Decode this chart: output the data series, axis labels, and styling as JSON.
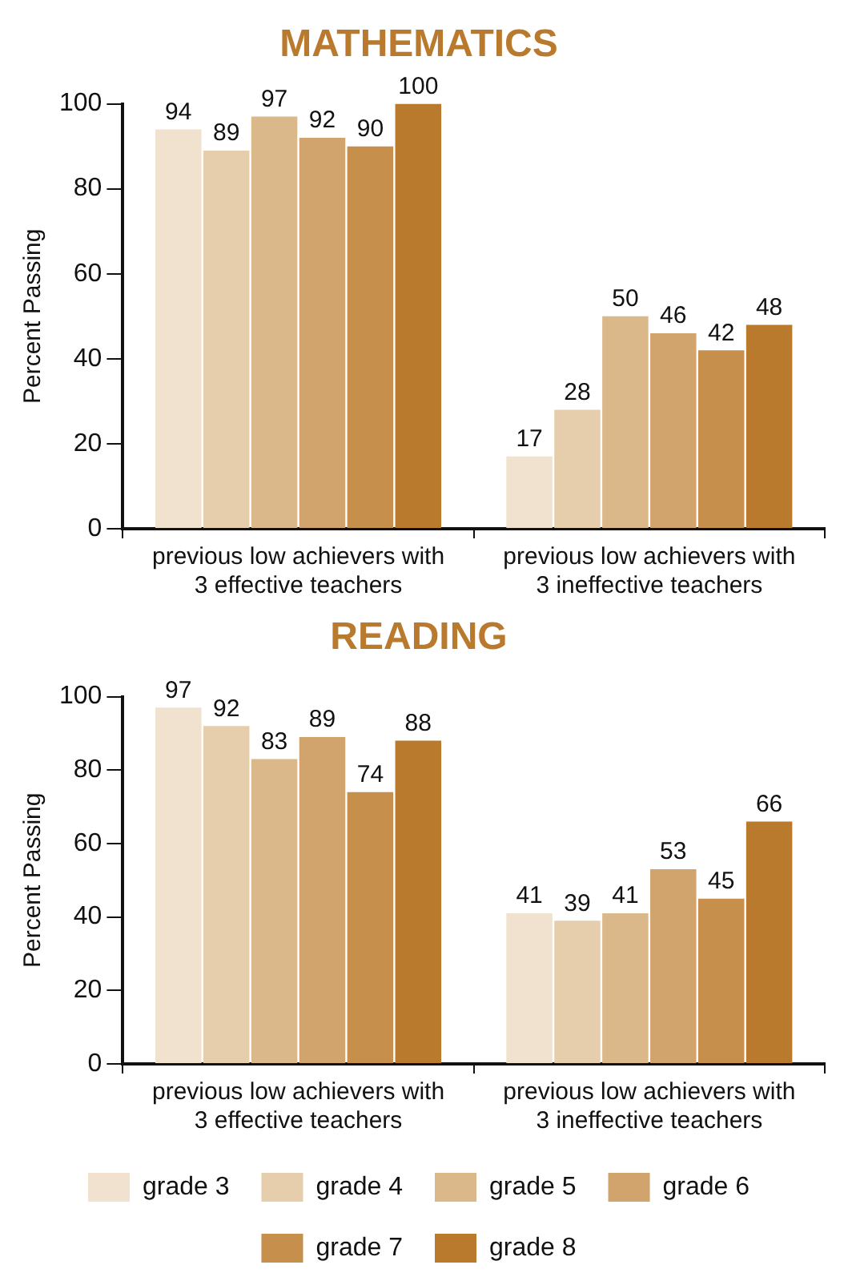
{
  "chart_data": [
    {
      "type": "bar",
      "title": "MATHEMATICS",
      "ylabel": "Percent Passing",
      "categories": [
        "previous low achievers with 3 effective teachers",
        "previous low achievers with 3 ineffective teachers"
      ],
      "series": [
        {
          "color": "#f0e2cf",
          "values": [
            94,
            17
          ]
        },
        {
          "color": "#e6cdab",
          "values": [
            89,
            28
          ]
        },
        {
          "color": "#dbb88a",
          "values": [
            97,
            50
          ]
        },
        {
          "color": "#d0a46c",
          "values": [
            92,
            46
          ]
        },
        {
          "color": "#c68f4c",
          "values": [
            90,
            42
          ]
        },
        {
          "color": "#b97a2d",
          "values": [
            100,
            48
          ]
        }
      ],
      "ylim": [
        0,
        100
      ],
      "yticks": [
        0,
        20,
        40,
        60,
        80,
        100
      ],
      "grid": false,
      "legend": false,
      "data_labels": true
    },
    {
      "type": "bar",
      "title": "READING",
      "ylabel": "Percent Passing",
      "categories": [
        "previous low achievers with 3 effective teachers",
        "previous low achievers with 3 ineffective teachers"
      ],
      "series": [
        {
          "name": "grade 3",
          "color": "#f0e2cf",
          "values": [
            97,
            41
          ]
        },
        {
          "name": "grade 4",
          "color": "#e6cdab",
          "values": [
            92,
            39
          ]
        },
        {
          "name": "grade 5",
          "color": "#dbb88a",
          "values": [
            83,
            41
          ]
        },
        {
          "name": "grade 6",
          "color": "#d0a46c",
          "values": [
            89,
            53
          ]
        },
        {
          "name": "grade 7",
          "color": "#c68f4c",
          "values": [
            74,
            45
          ]
        },
        {
          "name": "grade 8",
          "color": "#b97a2d",
          "values": [
            88,
            66
          ]
        }
      ],
      "ylim": [
        0,
        100
      ],
      "yticks": [
        0,
        20,
        40,
        60,
        80,
        100
      ],
      "grid": false,
      "legend": "bottom",
      "data_labels": true
    }
  ]
}
